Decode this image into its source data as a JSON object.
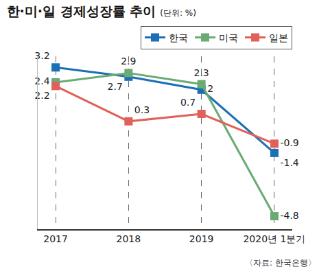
{
  "chart_data": {
    "type": "line",
    "title": "한·미·일 경제성장률 추이",
    "subtitle": "(단위: %)",
    "categories": [
      "2017",
      "2018",
      "2019",
      "2020년 1분기"
    ],
    "series": [
      {
        "name": "한국",
        "color": "#1a6fb5",
        "values": [
          3.2,
          2.7,
          2.0,
          -1.4
        ]
      },
      {
        "name": "미국",
        "color": "#6aab73",
        "values": [
          2.4,
          2.9,
          2.3,
          -4.8
        ]
      },
      {
        "name": "일본",
        "color": "#e0605a",
        "values": [
          2.2,
          0.3,
          0.7,
          -0.9
        ]
      }
    ],
    "ylim": [
      -5.5,
      3.8
    ],
    "grid": true,
    "legend": "top right",
    "data_labels": true,
    "tick_labels": "x",
    "marker": "square",
    "annotations": [
      "〈자료: 한국은행〉"
    ]
  }
}
